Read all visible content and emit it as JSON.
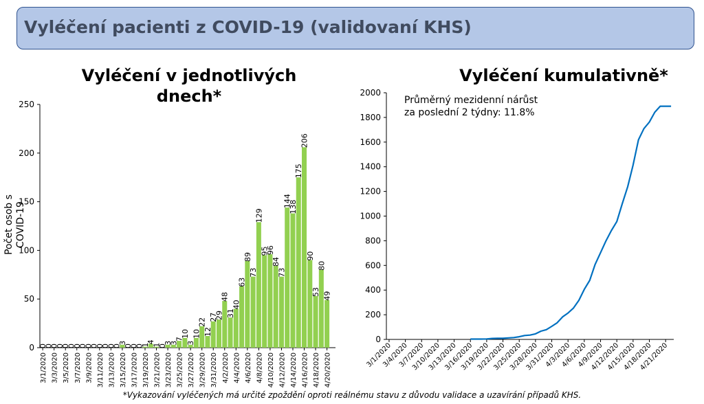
{
  "banner": {
    "title": "Vyléčení pacienti z COVID-19 (validovaní KHS)"
  },
  "footnote": "*Vykazování vyléčených má určité zpoždění oproti reálnému stavu z důvodu validace a uzavírání případů KHS.",
  "colors": {
    "bar": "#92d050",
    "line": "#0070c0",
    "banner_bg": "#b4c7e7",
    "banner_border": "#2f528f"
  },
  "chart_data": [
    {
      "type": "bar",
      "title": "Vyléčení v jednotlivých dnech*",
      "ylabel": "Počet osob s COVID-19",
      "ylim": [
        0,
        250
      ],
      "yticks": [
        0,
        50,
        100,
        150,
        200,
        250
      ],
      "xtick_labels": [
        "3/1/2020",
        "3/3/2020",
        "3/5/2020",
        "3/7/2020",
        "3/9/2020",
        "3/11/2020",
        "3/13/2020",
        "3/15/2020",
        "3/17/2020",
        "3/19/2020",
        "3/21/2020",
        "3/23/2020",
        "3/25/2020",
        "3/27/2020",
        "3/29/2020",
        "3/31/2020",
        "4/2/2020",
        "4/4/2020",
        "4/6/2020",
        "4/8/2020",
        "4/10/2020",
        "4/12/2020",
        "4/14/2020",
        "4/16/2020",
        "4/18/2020",
        "4/20/2020"
      ],
      "categories": [
        "3/1/2020",
        "3/2/2020",
        "3/3/2020",
        "3/4/2020",
        "3/5/2020",
        "3/6/2020",
        "3/7/2020",
        "3/8/2020",
        "3/9/2020",
        "3/10/2020",
        "3/11/2020",
        "3/12/2020",
        "3/13/2020",
        "3/14/2020",
        "3/15/2020",
        "3/16/2020",
        "3/17/2020",
        "3/18/2020",
        "3/19/2020",
        "3/20/2020",
        "3/21/2020",
        "3/22/2020",
        "3/23/2020",
        "3/24/2020",
        "3/25/2020",
        "3/26/2020",
        "3/27/2020",
        "3/28/2020",
        "3/29/2020",
        "3/30/2020",
        "3/31/2020",
        "4/1/2020",
        "4/2/2020",
        "4/3/2020",
        "4/4/2020",
        "4/5/2020",
        "4/6/2020",
        "4/7/2020",
        "4/8/2020",
        "4/9/2020",
        "4/10/2020",
        "4/11/2020",
        "4/12/2020",
        "4/13/2020",
        "4/14/2020",
        "4/15/2020",
        "4/16/2020",
        "4/17/2020",
        "4/18/2020",
        "4/19/2020",
        "4/20/2020",
        "4/21/2020"
      ],
      "values": [
        0,
        0,
        0,
        0,
        0,
        0,
        0,
        0,
        0,
        0,
        0,
        0,
        0,
        0,
        3,
        0,
        0,
        0,
        1,
        4,
        1,
        0,
        3,
        3,
        7,
        10,
        3,
        10,
        22,
        12,
        27,
        29,
        48,
        31,
        40,
        63,
        89,
        73,
        129,
        95,
        96,
        84,
        73,
        144,
        138,
        175,
        206,
        90,
        53,
        80,
        49,
        0
      ],
      "shown_labels": [
        "0",
        "0",
        "0",
        "0",
        "0",
        "0",
        "0",
        "0",
        "0",
        "0",
        "0",
        "0",
        "0",
        "0",
        "3",
        "0",
        "0",
        "0",
        "1",
        "4",
        "1",
        "0",
        "3",
        "3",
        "7",
        "10",
        "3",
        "10",
        "22",
        "12",
        "27",
        "29",
        "48",
        "31",
        "40",
        "63",
        "89",
        "73",
        "129",
        "95",
        "96",
        "84",
        "73",
        "144",
        "138",
        "175",
        "206",
        "90",
        "53",
        "80",
        "49",
        ""
      ]
    },
    {
      "type": "line",
      "title": "Vyléčení kumulativně*",
      "annotation": "Průměrný mezidenní nárůst\nza poslední 2 týdny: 11.8%",
      "ylim": [
        0,
        2000
      ],
      "yticks": [
        0,
        200,
        400,
        600,
        800,
        1000,
        1200,
        1400,
        1600,
        1800,
        2000
      ],
      "xtick_labels": [
        "3/1/2020",
        "3/4/2020",
        "3/7/2020",
        "3/10/2020",
        "3/13/2020",
        "3/16/2020",
        "3/19/2020",
        "3/22/2020",
        "3/25/2020",
        "3/28/2020",
        "3/31/2020",
        "4/3/2020",
        "4/6/2020",
        "4/9/2020",
        "4/12/2020",
        "4/15/2020",
        "4/18/2020",
        "4/21/2020"
      ],
      "x": [
        "3/16/2020",
        "3/17/2020",
        "3/18/2020",
        "3/19/2020",
        "3/20/2020",
        "3/21/2020",
        "3/22/2020",
        "3/23/2020",
        "3/24/2020",
        "3/25/2020",
        "3/26/2020",
        "3/27/2020",
        "3/28/2020",
        "3/29/2020",
        "3/30/2020",
        "3/31/2020",
        "4/1/2020",
        "4/2/2020",
        "4/3/2020",
        "4/4/2020",
        "4/5/2020",
        "4/6/2020",
        "4/7/2020",
        "4/8/2020",
        "4/9/2020",
        "4/10/2020",
        "4/11/2020",
        "4/12/2020",
        "4/13/2020",
        "4/14/2020",
        "4/15/2020",
        "4/16/2020",
        "4/17/2020",
        "4/18/2020",
        "4/19/2020",
        "4/20/2020",
        "4/21/2020",
        "4/22/2020"
      ],
      "y": [
        3,
        3,
        3,
        4,
        8,
        9,
        9,
        12,
        15,
        22,
        32,
        35,
        45,
        67,
        79,
        106,
        135,
        183,
        214,
        254,
        317,
        406,
        479,
        608,
        703,
        799,
        883,
        956,
        1100,
        1238,
        1413,
        1619,
        1709,
        1762,
        1842,
        1891,
        1891,
        1891
      ]
    }
  ]
}
